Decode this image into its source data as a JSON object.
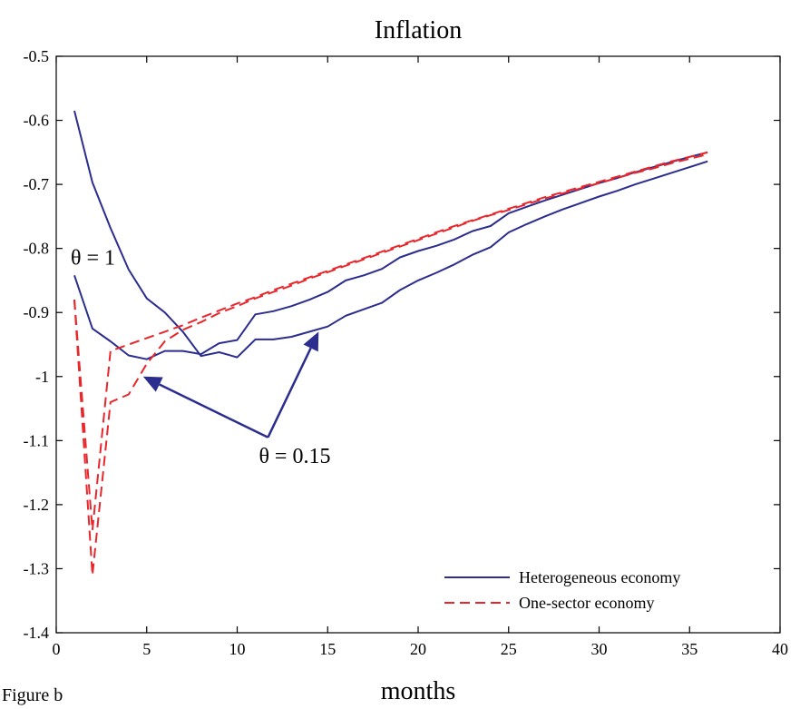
{
  "chart_data": {
    "type": "line",
    "title": "Inflation",
    "xlabel": "months",
    "ylabel": "",
    "caption": "Figure b",
    "xlim": [
      0,
      40
    ],
    "ylim": [
      -1.4,
      -0.5
    ],
    "xticks": [
      "0",
      "5",
      "10",
      "15",
      "20",
      "25",
      "30",
      "35",
      "40"
    ],
    "yticks": [
      "-0.5",
      "-0.6",
      "-0.7",
      "-0.8",
      "-0.9",
      "-1",
      "-1.1",
      "-1.2",
      "-1.3",
      "-1.4"
    ],
    "grid": false,
    "legend_position": "bottom-right",
    "legend": [
      "Heterogeneous economy",
      "One-sector economy"
    ],
    "annotations": [
      {
        "text": "θ = 1",
        "x": 0.8,
        "y": -0.825
      },
      {
        "text": "θ = 0.15",
        "x": 11.2,
        "y": -1.135
      }
    ],
    "arrows": [
      {
        "from": [
          11.7,
          -1.095
        ],
        "to": [
          4.8,
          -1.0
        ]
      },
      {
        "from": [
          11.7,
          -1.095
        ],
        "to": [
          14.5,
          -0.93
        ]
      }
    ],
    "series": [
      {
        "name": "Heterogeneous economy",
        "color": "#2b2d8f",
        "style": "solid",
        "x": [
          1,
          2,
          3,
          4,
          5,
          6,
          7,
          8,
          9,
          10,
          11,
          12,
          13,
          14,
          15,
          16,
          17,
          18,
          19,
          20,
          21,
          22,
          23,
          24,
          25,
          26,
          27,
          28,
          29,
          30,
          31,
          32,
          33,
          34,
          35,
          36
        ],
        "y": [
          -0.585,
          -0.697,
          -0.768,
          -0.833,
          -0.878,
          -0.9,
          -0.93,
          -0.968,
          -0.962,
          -0.97,
          -0.942,
          -0.942,
          -0.938,
          -0.93,
          -0.922,
          -0.905,
          -0.895,
          -0.885,
          -0.865,
          -0.85,
          -0.838,
          -0.825,
          -0.81,
          -0.798,
          -0.775,
          -0.762,
          -0.75,
          -0.739,
          -0.729,
          -0.719,
          -0.71,
          -0.7,
          -0.691,
          -0.682,
          -0.673,
          -0.664
        ]
      },
      {
        "name": "",
        "color": "#2b2d8f",
        "style": "solid",
        "x": [
          1,
          2,
          3,
          4,
          5,
          6,
          7,
          8,
          9,
          10,
          11,
          12,
          13,
          14,
          15,
          16,
          17,
          18,
          19,
          20,
          21,
          22,
          23,
          24,
          25,
          26,
          27,
          28,
          29,
          30,
          31,
          32,
          33,
          34,
          35,
          36
        ],
        "y": [
          -0.842,
          -0.925,
          -0.945,
          -0.967,
          -0.973,
          -0.96,
          -0.96,
          -0.965,
          -0.948,
          -0.943,
          -0.903,
          -0.898,
          -0.89,
          -0.88,
          -0.868,
          -0.85,
          -0.842,
          -0.832,
          -0.814,
          -0.804,
          -0.796,
          -0.786,
          -0.773,
          -0.765,
          -0.745,
          -0.735,
          -0.725,
          -0.716,
          -0.707,
          -0.698,
          -0.69,
          -0.681,
          -0.673,
          -0.665,
          -0.657,
          -0.65
        ]
      },
      {
        "name": "One-sector economy",
        "color": "#e8262b",
        "style": "dashed",
        "x": [
          1,
          2,
          3,
          4,
          5,
          6,
          7,
          8,
          9,
          10,
          11,
          12,
          13,
          14,
          15,
          16,
          17,
          18,
          19,
          20,
          21,
          22,
          23,
          24,
          25,
          26,
          27,
          28,
          29,
          30,
          31,
          32,
          33,
          34,
          35,
          36
        ],
        "y": [
          -0.88,
          -1.31,
          -1.04,
          -1.028,
          -0.98,
          -0.945,
          -0.927,
          -0.915,
          -0.901,
          -0.89,
          -0.878,
          -0.868,
          -0.858,
          -0.847,
          -0.837,
          -0.827,
          -0.817,
          -0.807,
          -0.797,
          -0.787,
          -0.777,
          -0.767,
          -0.757,
          -0.748,
          -0.74,
          -0.731,
          -0.722,
          -0.714,
          -0.706,
          -0.698,
          -0.69,
          -0.682,
          -0.675,
          -0.667,
          -0.66,
          -0.653
        ]
      },
      {
        "name": "",
        "color": "#e8262b",
        "style": "dashed",
        "x": [
          1,
          2,
          3,
          4,
          5,
          6,
          7,
          8,
          9,
          10,
          11,
          12,
          13,
          14,
          15,
          16,
          17,
          18,
          19,
          20,
          21,
          22,
          23,
          24,
          25,
          26,
          27,
          28,
          29,
          30,
          31,
          32,
          33,
          34,
          35,
          36
        ],
        "y": [
          -0.88,
          -1.24,
          -0.96,
          -0.95,
          -0.94,
          -0.93,
          -0.92,
          -0.908,
          -0.897,
          -0.886,
          -0.876,
          -0.865,
          -0.855,
          -0.845,
          -0.835,
          -0.825,
          -0.815,
          -0.805,
          -0.795,
          -0.785,
          -0.775,
          -0.765,
          -0.756,
          -0.747,
          -0.738,
          -0.729,
          -0.72,
          -0.712,
          -0.704,
          -0.696,
          -0.688,
          -0.68,
          -0.672,
          -0.664,
          -0.657,
          -0.65
        ]
      }
    ]
  }
}
